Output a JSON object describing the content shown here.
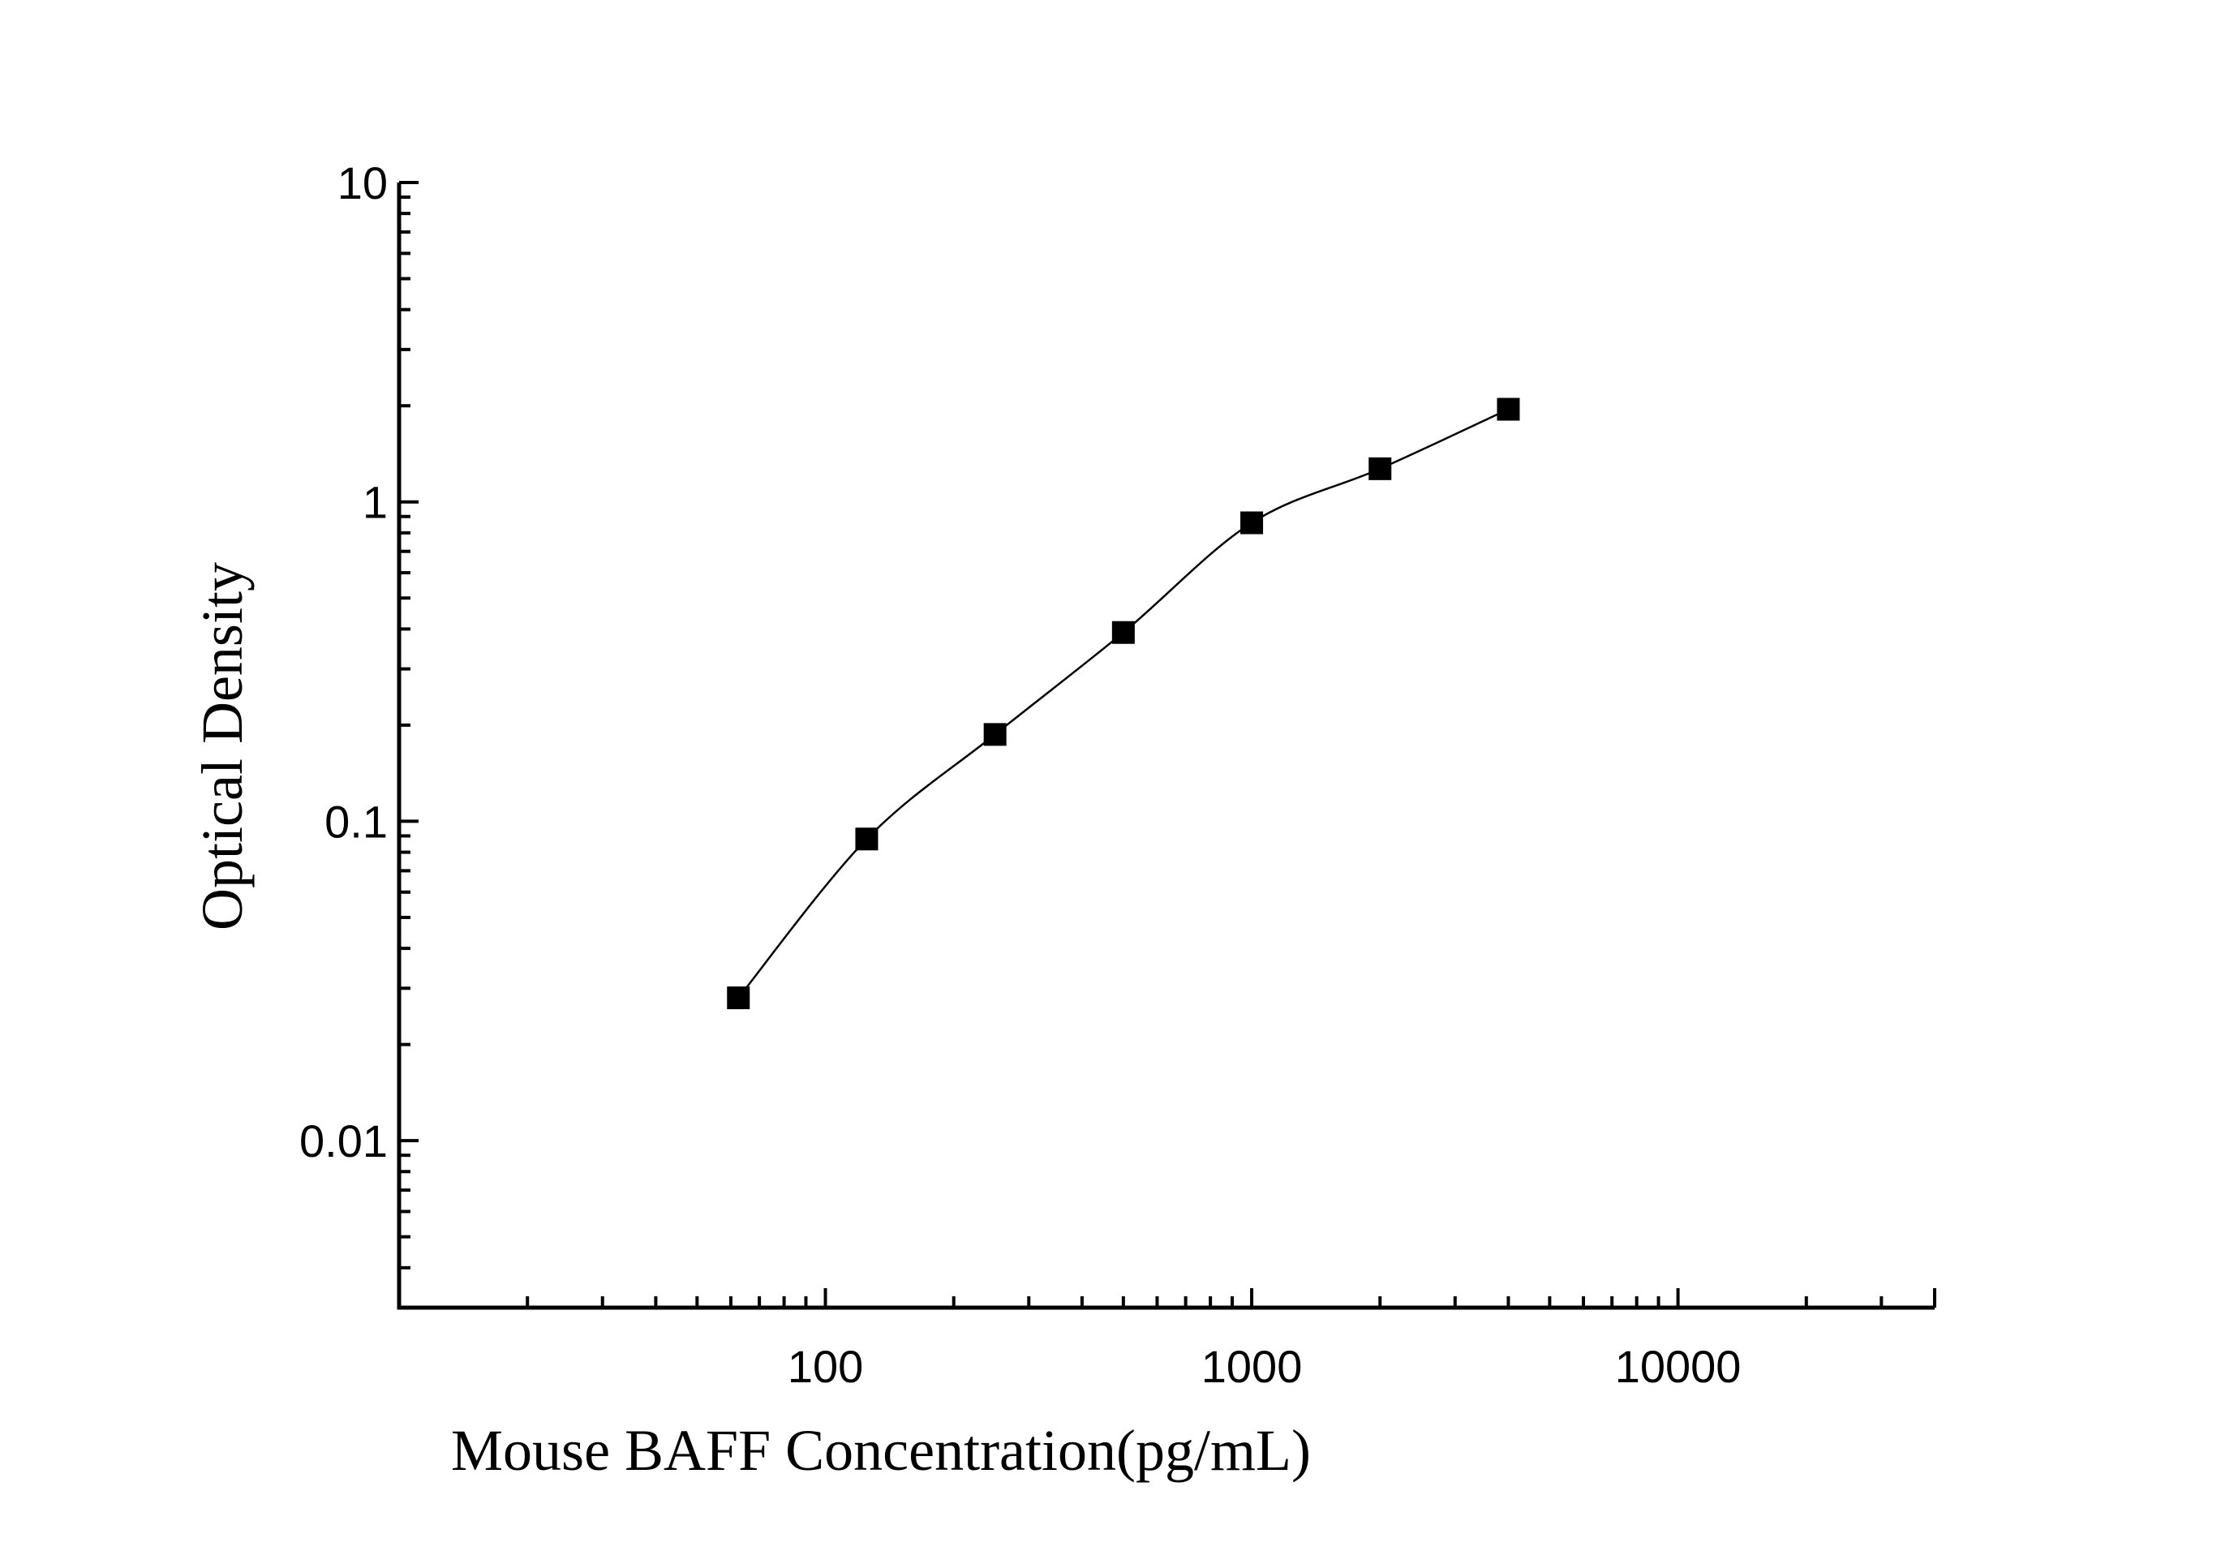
{
  "chart_data": {
    "type": "scatter",
    "xlabel": "Mouse BAFF Concentration(pg/mL)",
    "ylabel": "Optical Density",
    "xscale": "log",
    "yscale": "log",
    "xlim": [
      10,
      40000
    ],
    "ylim": [
      0.003,
      10
    ],
    "x_ticks": [
      {
        "value": 100,
        "label": "100"
      },
      {
        "value": 1000,
        "label": "1000"
      },
      {
        "value": 10000,
        "label": "10000"
      }
    ],
    "y_ticks": [
      {
        "value": 10,
        "label": "10"
      },
      {
        "value": 1,
        "label": "1"
      },
      {
        "value": 0.1,
        "label": "0.1"
      },
      {
        "value": 0.01,
        "label": "0.01"
      }
    ],
    "grid": false,
    "marker": "square",
    "connect_points": true,
    "series": [
      {
        "x": [
          62.5,
          125,
          250,
          500,
          1000,
          2000,
          4000
        ],
        "y": [
          0.028,
          0.088,
          0.187,
          0.39,
          0.86,
          1.27,
          1.95
        ]
      }
    ],
    "colors": {
      "marker": "#000000",
      "line": "#000000",
      "axis": "#000000"
    }
  }
}
